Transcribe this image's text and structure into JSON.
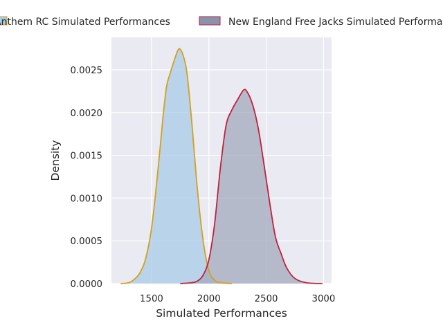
{
  "chart_data": {
    "type": "area",
    "xlabel": "Simulated Performances",
    "ylabel": "Density",
    "xlim": [
      1150,
      3070
    ],
    "ylim": [
      0,
      0.00288
    ],
    "x_ticks": [
      1500,
      2000,
      2500,
      3000
    ],
    "x_tick_labels": [
      "1500",
      "2000",
      "2500",
      "3000"
    ],
    "y_ticks": [
      0,
      0.0005,
      0.001,
      0.0015,
      0.002,
      0.0025
    ],
    "y_tick_labels": [
      "0.0000",
      "0.0005",
      "0.0010",
      "0.0015",
      "0.0020",
      "0.0025"
    ],
    "grid": true,
    "legend_placement": "top-center, outside",
    "series": [
      {
        "name": "Anthem RC Simulated Performances",
        "line_color": "#d4a017",
        "fill_color": "#a8cbe8",
        "points": [
          [
            1230,
            0
          ],
          [
            1300,
            1e-05
          ],
          [
            1350,
            5e-05
          ],
          [
            1400,
            0.00013
          ],
          [
            1450,
            0.0003
          ],
          [
            1500,
            0.00065
          ],
          [
            1550,
            0.00125
          ],
          [
            1600,
            0.00195
          ],
          [
            1630,
            0.0023
          ],
          [
            1660,
            0.00245
          ],
          [
            1700,
            0.00262
          ],
          [
            1730,
            0.00273
          ],
          [
            1750,
            0.00274
          ],
          [
            1780,
            0.00265
          ],
          [
            1810,
            0.00245
          ],
          [
            1850,
            0.0019
          ],
          [
            1900,
            0.0011
          ],
          [
            1950,
            0.0005
          ],
          [
            2000,
            0.00015
          ],
          [
            2050,
            4e-05
          ],
          [
            2100,
            1e-05
          ],
          [
            2200,
            0
          ]
        ]
      },
      {
        "name": "New England Free Jacks Simulated Performances",
        "line_color": "#c0203c",
        "fill_color": "#a3a9bd",
        "points": [
          [
            1750,
            0
          ],
          [
            1850,
            1e-05
          ],
          [
            1900,
            3e-05
          ],
          [
            1950,
            0.0001
          ],
          [
            2000,
            0.00028
          ],
          [
            2050,
            0.0007
          ],
          [
            2100,
            0.00135
          ],
          [
            2150,
            0.00185
          ],
          [
            2200,
            0.00203
          ],
          [
            2250,
            0.00215
          ],
          [
            2300,
            0.00226
          ],
          [
            2330,
            0.00225
          ],
          [
            2380,
            0.0021
          ],
          [
            2430,
            0.00182
          ],
          [
            2480,
            0.0014
          ],
          [
            2530,
            0.00095
          ],
          [
            2580,
            0.00055
          ],
          [
            2630,
            0.00035
          ],
          [
            2680,
            0.00018
          ],
          [
            2750,
            6e-05
          ],
          [
            2850,
            1e-05
          ],
          [
            2990,
            0
          ]
        ]
      }
    ]
  }
}
